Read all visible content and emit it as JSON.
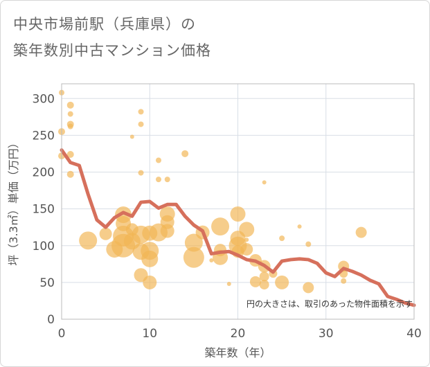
{
  "title_line1": "中央市場前駅（兵庫県）の",
  "title_line2": "築年数別中古マンション価格",
  "colors": {
    "bubble": "#f2b654",
    "line": "#d6705c",
    "grid": "#d8dee6",
    "axis_text": "#555555",
    "plot_border": "#bbbbbb"
  },
  "chart_data": {
    "type": "scatter",
    "xlabel": "築年数（年）",
    "ylabel": "坪（3.3㎡）単価（万円）",
    "xlim": [
      0,
      40
    ],
    "ylim": [
      0,
      320
    ],
    "xticks": [
      0,
      10,
      20,
      30,
      40
    ],
    "yticks": [
      0,
      50,
      100,
      150,
      200,
      250,
      300
    ],
    "grid": true,
    "annotation": "円の大きさは、取引のあった物件面積を示す",
    "bubbles": [
      {
        "x": 0,
        "y": 308,
        "s": 4
      },
      {
        "x": 0,
        "y": 255,
        "s": 5
      },
      {
        "x": 0,
        "y": 222,
        "s": 5
      },
      {
        "x": 1,
        "y": 291,
        "s": 5
      },
      {
        "x": 1,
        "y": 279,
        "s": 4
      },
      {
        "x": 1,
        "y": 265,
        "s": 5
      },
      {
        "x": 1,
        "y": 262,
        "s": 4
      },
      {
        "x": 1,
        "y": 224,
        "s": 5
      },
      {
        "x": 1,
        "y": 197,
        "s": 5
      },
      {
        "x": 3,
        "y": 107,
        "s": 13
      },
      {
        "x": 5,
        "y": 116,
        "s": 9
      },
      {
        "x": 6,
        "y": 95,
        "s": 12
      },
      {
        "x": 7,
        "y": 142,
        "s": 12
      },
      {
        "x": 7,
        "y": 130,
        "s": 11
      },
      {
        "x": 7,
        "y": 113,
        "s": 15
      },
      {
        "x": 7,
        "y": 100,
        "s": 17
      },
      {
        "x": 8,
        "y": 248,
        "s": 3
      },
      {
        "x": 8,
        "y": 122,
        "s": 9
      },
      {
        "x": 8,
        "y": 106,
        "s": 12
      },
      {
        "x": 9,
        "y": 282,
        "s": 4
      },
      {
        "x": 9,
        "y": 265,
        "s": 4
      },
      {
        "x": 9,
        "y": 199,
        "s": 4
      },
      {
        "x": 9,
        "y": 115,
        "s": 13
      },
      {
        "x": 9,
        "y": 92,
        "s": 12
      },
      {
        "x": 9,
        "y": 60,
        "s": 10
      },
      {
        "x": 10,
        "y": 117,
        "s": 11
      },
      {
        "x": 10,
        "y": 93,
        "s": 13
      },
      {
        "x": 10,
        "y": 82,
        "s": 12
      },
      {
        "x": 10,
        "y": 50,
        "s": 10
      },
      {
        "x": 11,
        "y": 216,
        "s": 4
      },
      {
        "x": 11,
        "y": 190,
        "s": 4
      },
      {
        "x": 11,
        "y": 118,
        "s": 13
      },
      {
        "x": 12,
        "y": 190,
        "s": 4
      },
      {
        "x": 12,
        "y": 143,
        "s": 11
      },
      {
        "x": 12,
        "y": 132,
        "s": 10
      },
      {
        "x": 12,
        "y": 120,
        "s": 10
      },
      {
        "x": 14,
        "y": 225,
        "s": 5
      },
      {
        "x": 15,
        "y": 104,
        "s": 13
      },
      {
        "x": 15,
        "y": 84,
        "s": 15
      },
      {
        "x": 16,
        "y": 118,
        "s": 10
      },
      {
        "x": 17,
        "y": 80,
        "s": 3
      },
      {
        "x": 18,
        "y": 126,
        "s": 13
      },
      {
        "x": 18,
        "y": 94,
        "s": 9
      },
      {
        "x": 18,
        "y": 84,
        "s": 11
      },
      {
        "x": 19,
        "y": 48,
        "s": 3
      },
      {
        "x": 20,
        "y": 143,
        "s": 11
      },
      {
        "x": 20,
        "y": 110,
        "s": 11
      },
      {
        "x": 20,
        "y": 100,
        "s": 13
      },
      {
        "x": 20,
        "y": 92,
        "s": 9
      },
      {
        "x": 21,
        "y": 122,
        "s": 11
      },
      {
        "x": 21,
        "y": 108,
        "s": 3
      },
      {
        "x": 21,
        "y": 95,
        "s": 9
      },
      {
        "x": 22,
        "y": 80,
        "s": 9
      },
      {
        "x": 22,
        "y": 51,
        "s": 8
      },
      {
        "x": 23,
        "y": 186,
        "s": 3
      },
      {
        "x": 23,
        "y": 72,
        "s": 9
      },
      {
        "x": 23,
        "y": 58,
        "s": 7
      },
      {
        "x": 23,
        "y": 47,
        "s": 7
      },
      {
        "x": 24,
        "y": 62,
        "s": 6
      },
      {
        "x": 25,
        "y": 110,
        "s": 4
      },
      {
        "x": 25,
        "y": 50,
        "s": 10
      },
      {
        "x": 27,
        "y": 126,
        "s": 3
      },
      {
        "x": 28,
        "y": 102,
        "s": 4
      },
      {
        "x": 28,
        "y": 43,
        "s": 8
      },
      {
        "x": 32,
        "y": 72,
        "s": 8
      },
      {
        "x": 32,
        "y": 62,
        "s": 6
      },
      {
        "x": 32,
        "y": 52,
        "s": 4
      },
      {
        "x": 34,
        "y": 118,
        "s": 8
      }
    ],
    "average_line": {
      "x": [
        0,
        1,
        2,
        3,
        4,
        5,
        6,
        7,
        8,
        9,
        10,
        11,
        12,
        13,
        14,
        15,
        16,
        17,
        18,
        19,
        20,
        21,
        22,
        23,
        24,
        25,
        26,
        27,
        28,
        29,
        30,
        31,
        32,
        33,
        34,
        35,
        36,
        37,
        38,
        39,
        40
      ],
      "y": [
        230,
        213,
        209,
        170,
        135,
        125,
        138,
        145,
        140,
        159,
        160,
        151,
        156,
        156,
        140,
        128,
        120,
        89,
        91,
        92,
        87,
        81,
        79,
        73,
        64,
        79,
        81,
        82,
        81,
        76,
        63,
        58,
        69,
        65,
        60,
        53,
        48,
        31,
        27,
        22,
        19
      ]
    }
  }
}
